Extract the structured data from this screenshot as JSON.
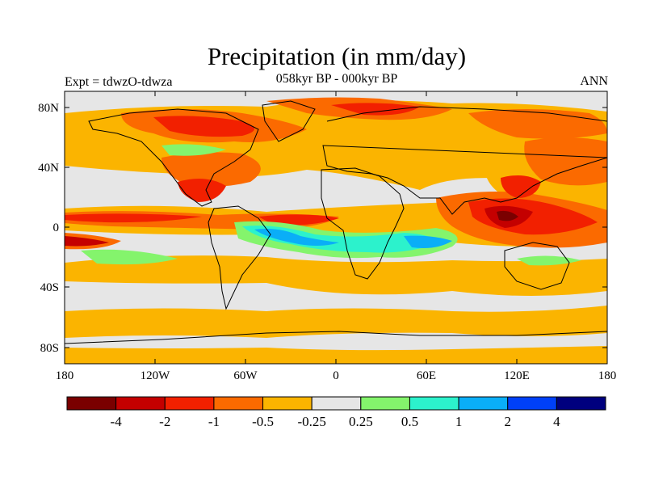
{
  "title": "Precipitation (in mm/day)",
  "subtitle": "058kyr BP - 000kyr BP",
  "left_label": "Expt = tdwzO-tdwza",
  "right_label": "ANN",
  "colors": {
    "background_neutral": "#e6e6e6",
    "land_outline": "#000000"
  },
  "axes": {
    "x_ticks": [
      "180",
      "120W",
      "60W",
      "0",
      "60E",
      "120E",
      "180"
    ],
    "y_ticks": [
      "80N",
      "40N",
      "0",
      "40S",
      "80S"
    ]
  },
  "colorbar": {
    "colors": [
      "#7a0000",
      "#c40000",
      "#f22000",
      "#fb6a00",
      "#fbb400",
      "#e6e6e6",
      "#84f46c",
      "#2cf2cc",
      "#0aaef7",
      "#0040f8",
      "#00007e"
    ],
    "labels": [
      "-4",
      "-2",
      "-1",
      "-0.5",
      "-0.25",
      "0.25",
      "0.5",
      "1",
      "2",
      "4"
    ]
  }
}
